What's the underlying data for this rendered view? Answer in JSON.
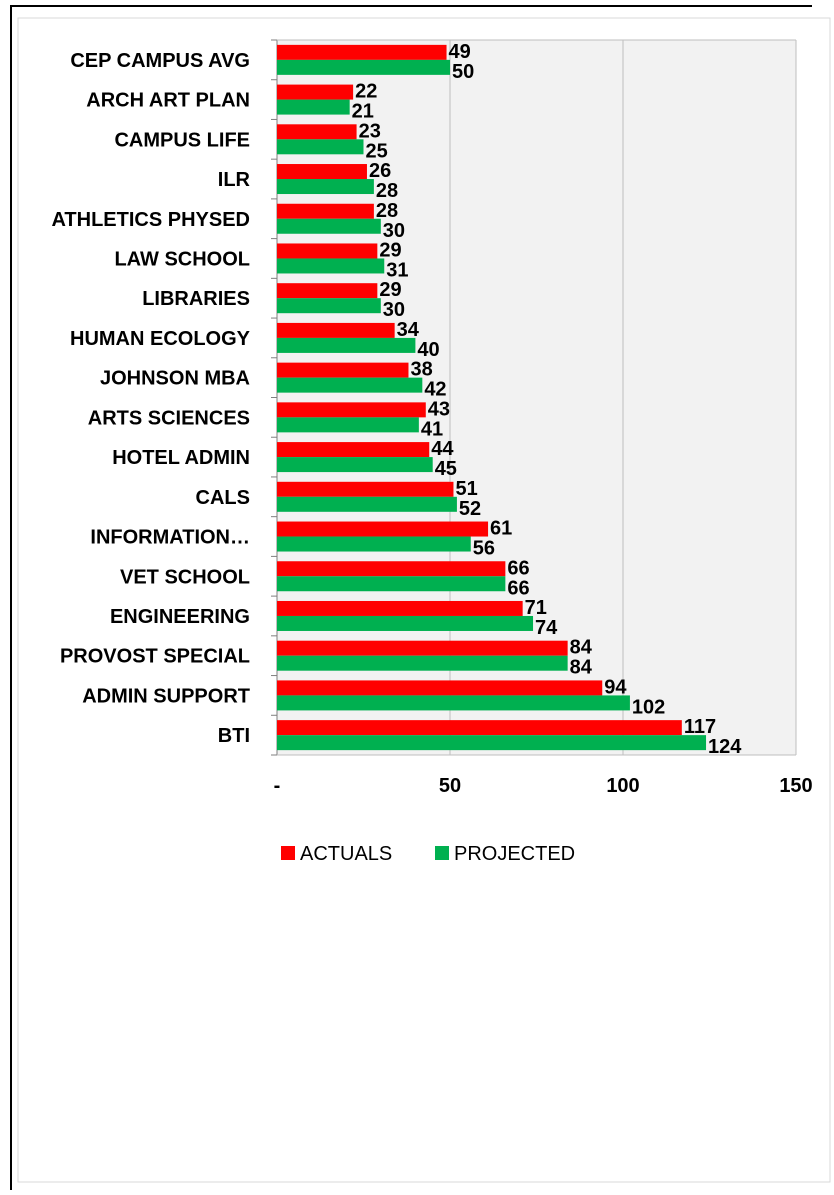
{
  "chart_data": {
    "type": "bar",
    "orientation": "horizontal",
    "categories": [
      "CEP CAMPUS AVG",
      "ARCH ART PLAN",
      "CAMPUS LIFE",
      "ILR",
      "ATHLETICS PHYSED",
      "LAW SCHOOL",
      "LIBRARIES",
      "HUMAN ECOLOGY",
      "JOHNSON MBA",
      "ARTS SCIENCES",
      "HOTEL ADMIN",
      "CALS",
      "INFORMATION…",
      "VET SCHOOL",
      "ENGINEERING",
      "PROVOST SPECIAL",
      "ADMIN SUPPORT",
      "BTI"
    ],
    "series": [
      {
        "name": "ACTUALS",
        "color": "#ff0000",
        "values": [
          49,
          22,
          23,
          26,
          28,
          29,
          29,
          34,
          38,
          43,
          44,
          51,
          61,
          66,
          71,
          84,
          94,
          117
        ]
      },
      {
        "name": "PROJECTED",
        "color": "#00b050",
        "values": [
          50,
          21,
          25,
          28,
          30,
          31,
          30,
          40,
          42,
          41,
          45,
          52,
          56,
          66,
          74,
          84,
          102,
          124
        ]
      }
    ],
    "xlim": [
      0,
      150
    ],
    "xticks": [
      {
        "value": 0,
        "label": "-"
      },
      {
        "value": 50,
        "label": "50"
      },
      {
        "value": 100,
        "label": "100"
      },
      {
        "value": 150,
        "label": "150"
      }
    ],
    "grid": true,
    "legend_position": "bottom",
    "plot_background": "#f2f2f2",
    "grid_color": "#bfbfbf"
  }
}
